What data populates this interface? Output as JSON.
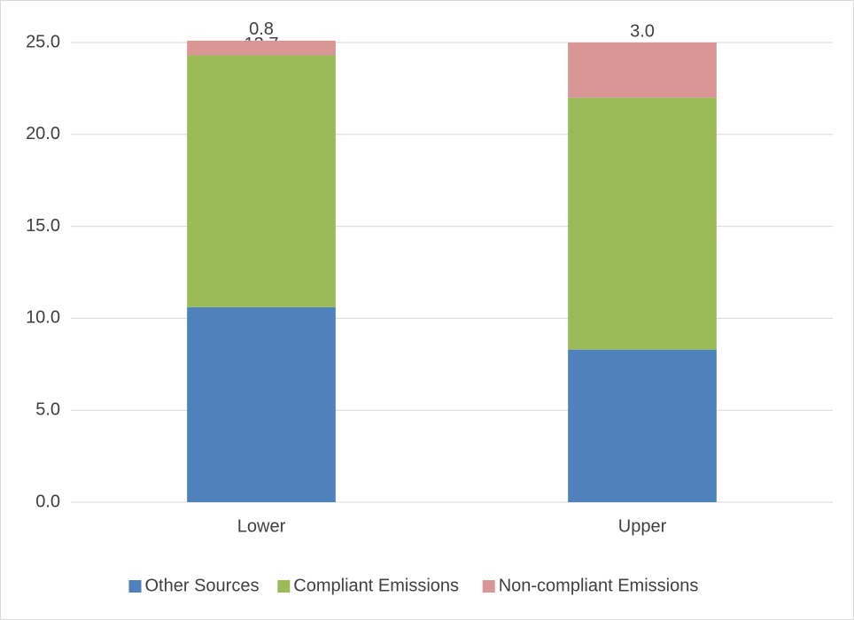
{
  "chart_data": {
    "type": "stacked_bar",
    "categories": [
      "Lower",
      "Upper"
    ],
    "series": [
      {
        "name": "Other Sources",
        "color": "#4f81bd",
        "values": [
          10.6,
          8.3
        ],
        "value_labels": [
          "10.6",
          "8.3"
        ]
      },
      {
        "name": "Compliant Emissions",
        "color": "#9bbb59",
        "values": [
          13.7,
          13.7
        ],
        "value_labels": [
          "13.7",
          "13.7"
        ]
      },
      {
        "name": "Non-compliant Emissions",
        "color": "#d99694",
        "values": [
          0.8,
          3.0
        ],
        "value_labels": [
          "0.8",
          "3.0"
        ]
      }
    ],
    "ylim": [
      0,
      25
    ],
    "yticks": [
      {
        "value": 0,
        "label": "0.0"
      },
      {
        "value": 5,
        "label": "5.0"
      },
      {
        "value": 10,
        "label": "10.0"
      },
      {
        "value": 15,
        "label": "15.0"
      },
      {
        "value": 20,
        "label": "20.0"
      },
      {
        "value": 25,
        "label": "25.0"
      }
    ],
    "grid": true,
    "legend": "bottom"
  }
}
